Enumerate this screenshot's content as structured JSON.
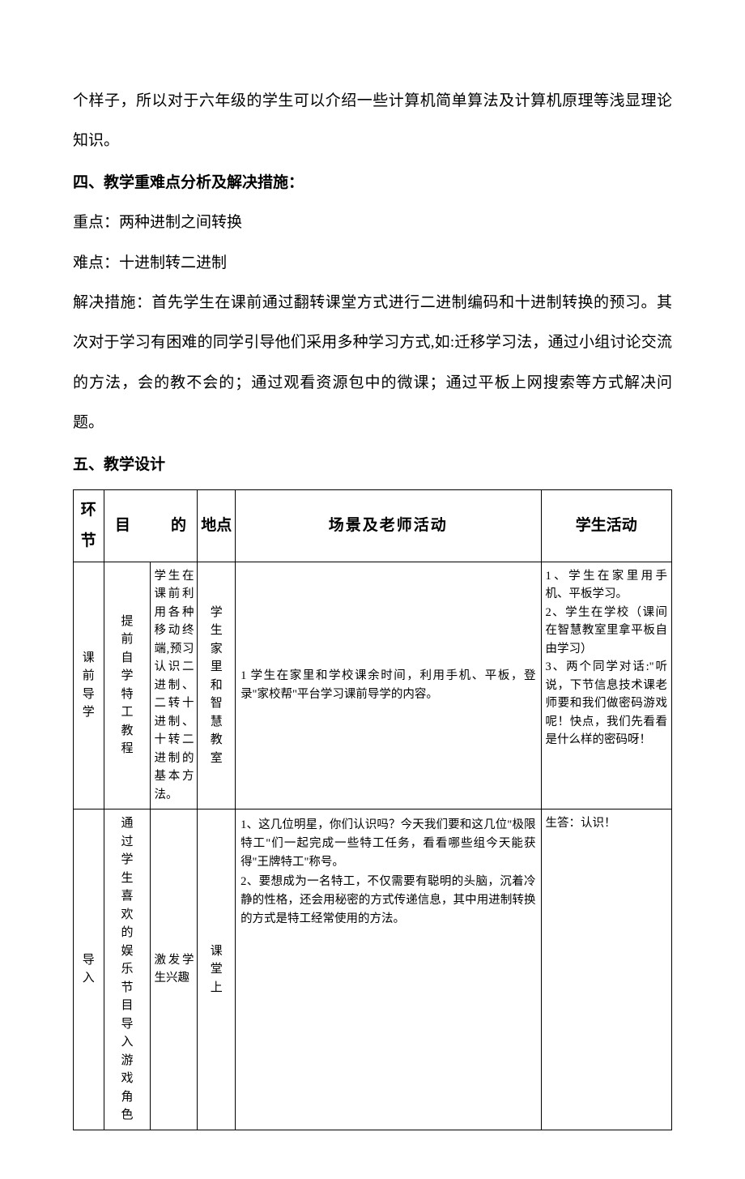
{
  "intro": "个样子，所以对于六年级的学生可以介绍一些计算机简单算法及计算机原理等浅显理论知识。",
  "section4": {
    "heading": "四、教学重难点分析及解决措施：",
    "key": "重点：两种进制之间转换",
    "difficulty": "难点：十进制转二进制",
    "solution": "解决措施：首先学生在课前通过翻转课堂方式进行二进制编码和十进制转换的预习。其次对于学习有困难的同学引导他们采用多种学习方式,如:迁移学习法，通过小组讨论交流的方法，会的教不会的；通过观看资源包中的微课；通过平板上网搜索等方式解决问题。"
  },
  "section5": {
    "heading": "五、教学设计"
  },
  "table": {
    "headers": {
      "h1": "环节",
      "h2": "目的",
      "h3": "地点",
      "h4": "场景及老师活动",
      "h5": "学生活动"
    },
    "rows": [
      {
        "phase": "课前导学",
        "purpose_a": "提前自学特工教程",
        "purpose_b": "学生在课前利用各种移动终端,预习认识二进制、二转十进制、十转二进制的基本方法。",
        "location": "学生家里和智慧教室",
        "scene": "1 学生在家里和学校课余时间，利用手机、平板，登录\"家校帮\"平台学习课前导学的内容。",
        "student": "1、学生在家里用手机、平板学习。\n2、学生在学校（课间在智慧教室里拿平板自由学习）\n3、两个同学对话:\"听说，下节信息技术课老师要和我们做密码游戏呢！快点，我们先看看是什么样的密码呀！"
      },
      {
        "phase": "导入",
        "purpose_a": "通过学生喜欢的娱乐节目导入游戏角色",
        "purpose_b": "激发学生兴趣",
        "location": "课堂上",
        "scene": "1、这几位明星，你们认识吗？今天我们要和这几位\"极限特工\"们一起完成一些特工任务，看看哪些组今天能获得\"王牌特工\"称号。\n2、要想成为一名特工，不仅需要有聪明的头脑，沉着冷静的性格，还会用秘密的方式传递信息，其中用进制转换的方式是特工经常使用的方法。",
        "student": "生答：认识！"
      }
    ]
  }
}
